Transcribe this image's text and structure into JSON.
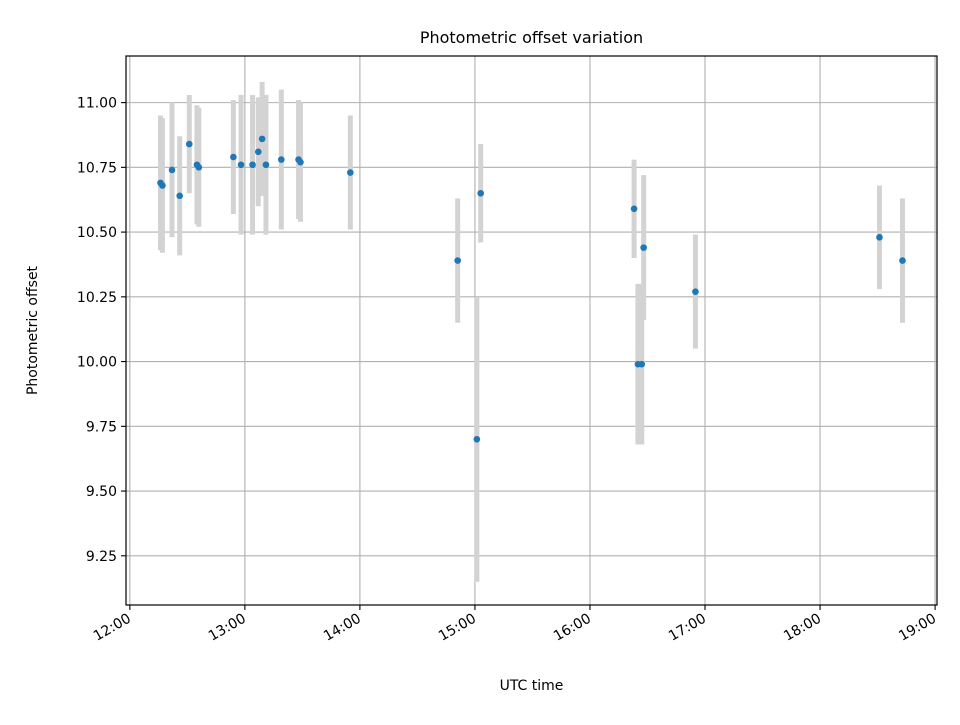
{
  "chart_data": {
    "type": "scatter",
    "title": "Photometric offset variation",
    "xlabel": "UTC time",
    "ylabel": "Photometric offset",
    "x_ticks": [
      "12:00",
      "13:00",
      "14:00",
      "15:00",
      "16:00",
      "17:00",
      "18:00",
      "19:00"
    ],
    "y_ticks": [
      "9.25",
      "9.50",
      "9.75",
      "10.00",
      "10.25",
      "10.50",
      "10.75",
      "11.00"
    ],
    "xlim": [
      "11:58",
      "19:01"
    ],
    "ylim": [
      9.06,
      11.18
    ],
    "grid": true,
    "marker_color": "#1f77b4",
    "errorbar_color": "#d3d3d3",
    "series": [
      {
        "points": [
          {
            "x": "12:16",
            "y": 10.69,
            "err": 0.26
          },
          {
            "x": "12:17",
            "y": 10.68,
            "err": 0.26
          },
          {
            "x": "12:22",
            "y": 10.74,
            "err": 0.26
          },
          {
            "x": "12:26",
            "y": 10.64,
            "err": 0.23
          },
          {
            "x": "12:31",
            "y": 10.84,
            "err": 0.19
          },
          {
            "x": "12:35",
            "y": 10.76,
            "err": 0.23
          },
          {
            "x": "12:36",
            "y": 10.75,
            "err": 0.23
          },
          {
            "x": "12:54",
            "y": 10.79,
            "err": 0.22
          },
          {
            "x": "12:58",
            "y": 10.76,
            "err": 0.27
          },
          {
            "x": "13:04",
            "y": 10.76,
            "err": 0.27
          },
          {
            "x": "13:07",
            "y": 10.81,
            "err": 0.21
          },
          {
            "x": "13:09",
            "y": 10.86,
            "err": 0.22
          },
          {
            "x": "13:11",
            "y": 10.76,
            "err": 0.27
          },
          {
            "x": "13:19",
            "y": 10.78,
            "err": 0.27
          },
          {
            "x": "13:28",
            "y": 10.78,
            "err": 0.23
          },
          {
            "x": "13:29",
            "y": 10.77,
            "err": 0.23
          },
          {
            "x": "13:55",
            "y": 10.73,
            "err": 0.22
          },
          {
            "x": "14:51",
            "y": 10.39,
            "err": 0.24
          },
          {
            "x": "15:01",
            "y": 9.7,
            "err": 0.55
          },
          {
            "x": "15:03",
            "y": 10.65,
            "err": 0.19
          },
          {
            "x": "16:23",
            "y": 10.59,
            "err": 0.19
          },
          {
            "x": "16:25",
            "y": 9.99,
            "err": 0.31
          },
          {
            "x": "16:27",
            "y": 9.99,
            "err": 0.31
          },
          {
            "x": "16:28",
            "y": 10.44,
            "err": 0.28
          },
          {
            "x": "16:55",
            "y": 10.27,
            "err": 0.22
          },
          {
            "x": "18:31",
            "y": 10.48,
            "err": 0.2
          },
          {
            "x": "18:43",
            "y": 10.39,
            "err": 0.24
          }
        ]
      }
    ]
  }
}
